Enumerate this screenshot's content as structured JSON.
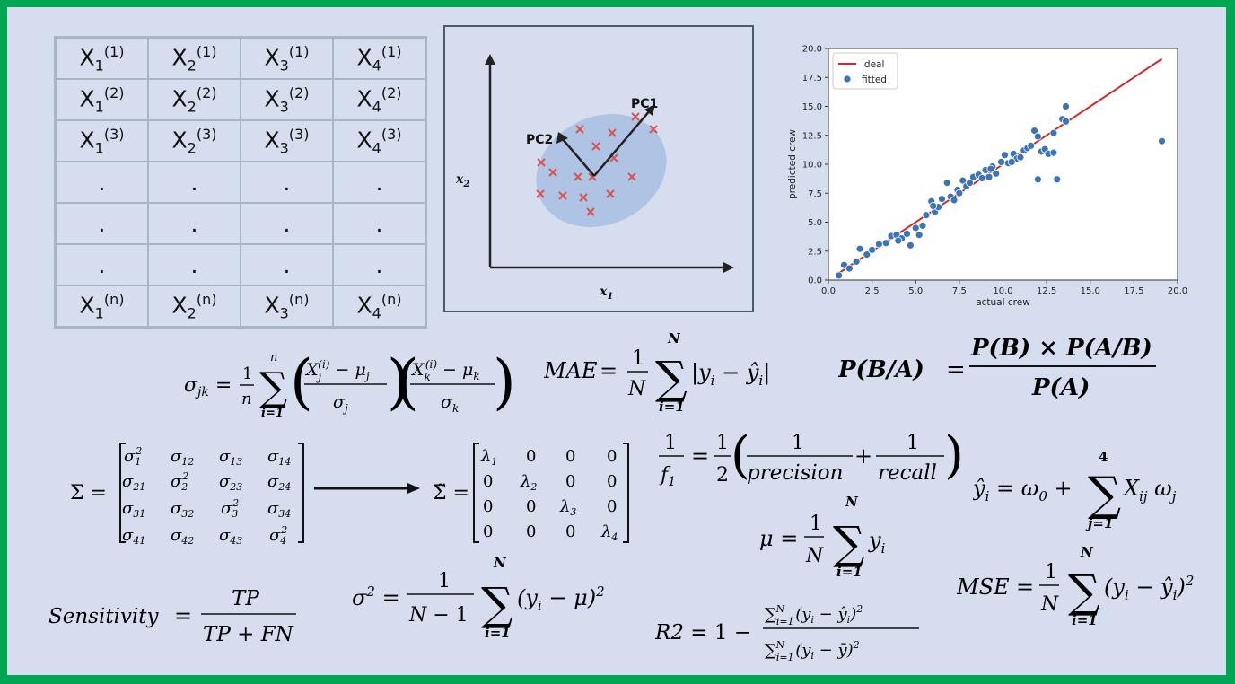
{
  "data_matrix": {
    "rows": [
      [
        "X1(1)",
        "X2(1)",
        "X3(1)",
        "X4(1)"
      ],
      [
        "X1(2)",
        "X2(2)",
        "X3(2)",
        "X4(2)"
      ],
      [
        "X1(3)",
        "X2(3)",
        "X3(3)",
        "X4(3)"
      ],
      [
        ".",
        ".",
        ".",
        "."
      ],
      [
        ".",
        ".",
        ".",
        "."
      ],
      [
        ".",
        ".",
        ".",
        "."
      ],
      [
        "X1(n)",
        "X2(n)",
        "X3(n)",
        "X4(n)"
      ]
    ],
    "base": [
      "X",
      "X",
      "X",
      "X"
    ],
    "subs": [
      "1",
      "2",
      "3",
      "4"
    ],
    "sups": [
      "(1)",
      "(2)",
      "(3)",
      "",
      "",
      "",
      "(n)"
    ]
  },
  "pca": {
    "pc1_label": "PC1",
    "pc2_label": "PC2",
    "x_axis_label": "x",
    "x_axis_sub": "1",
    "y_axis_label": "x",
    "y_axis_sub": "2",
    "marker_color": "#d9534f",
    "ellipse_color": "#a8bfe3"
  },
  "chart_data": {
    "type": "scatter",
    "xlabel": "actual crew",
    "ylabel": "predicted crew",
    "xlim": [
      0.0,
      20.0
    ],
    "ylim": [
      0.0,
      20.0
    ],
    "xticks": [
      "0.0",
      "2.5",
      "5.0",
      "7.5",
      "10.0",
      "12.5",
      "15.0",
      "17.5",
      "20.0"
    ],
    "yticks": [
      "0.0",
      "2.5",
      "5.0",
      "7.5",
      "10.0",
      "12.5",
      "15.0",
      "17.5",
      "20.0"
    ],
    "legend_position": "top-left",
    "series": [
      {
        "name": "ideal",
        "type": "line",
        "color": "#d62728",
        "x": [
          0.6,
          19.1
        ],
        "y": [
          0.6,
          19.1
        ]
      },
      {
        "name": "fitted",
        "type": "scatter",
        "color": "#3b75b5",
        "x": [
          0.6,
          0.9,
          1.2,
          1.6,
          1.8,
          2.2,
          2.5,
          2.9,
          3.3,
          3.6,
          3.9,
          4.2,
          4.5,
          4.7,
          5.0,
          5.2,
          5.4,
          5.6,
          5.9,
          6.1,
          6.3,
          6.5,
          6.8,
          7.0,
          7.2,
          7.4,
          7.7,
          7.9,
          8.1,
          8.3,
          8.6,
          8.8,
          9.0,
          9.2,
          9.4,
          9.6,
          9.9,
          10.1,
          10.3,
          10.6,
          10.8,
          11.0,
          11.2,
          11.4,
          11.6,
          11.8,
          12.0,
          12.2,
          12.4,
          12.6,
          12.9,
          13.1,
          13.4,
          13.6,
          13.6,
          12.0,
          12.9,
          19.1,
          6.0,
          7.5,
          9.3,
          4.0,
          10.5
        ],
        "y": [
          0.4,
          1.3,
          1.0,
          1.6,
          2.7,
          2.2,
          2.6,
          3.1,
          3.2,
          3.8,
          3.9,
          3.6,
          4.0,
          3.0,
          4.5,
          3.9,
          4.7,
          5.6,
          6.8,
          5.9,
          6.3,
          7.0,
          8.4,
          7.2,
          6.9,
          7.8,
          8.6,
          8.1,
          8.4,
          8.9,
          9.1,
          8.8,
          9.5,
          8.9,
          9.8,
          9.2,
          10.2,
          10.8,
          10.1,
          10.9,
          10.5,
          10.6,
          11.2,
          11.4,
          11.6,
          12.9,
          12.4,
          11.1,
          11.3,
          10.9,
          12.7,
          8.7,
          13.9,
          15.0,
          13.7,
          8.7,
          11.0,
          12.0,
          6.4,
          7.5,
          9.6,
          3.4,
          10.2
        ]
      }
    ]
  },
  "eq": {
    "sigma_jk_lhs": "σ",
    "sigma_jk_sub": "jk",
    "mae_lhs": "MAE",
    "bayes_num": "P(B) × P(A/B)",
    "bayes_den": "P(A)",
    "bayes_lhs": "P(B/A)",
    "f1_precision": "precision",
    "f1_recall": "recall",
    "sens_lhs": "Sensitivity",
    "sens_num": "TP",
    "sens_den": "TP + FN",
    "r2_lhs": "R2",
    "mse_lhs": "MSE",
    "one": "1",
    "two": "2",
    "n_small": "n",
    "N_big": "N",
    "four": "4"
  }
}
